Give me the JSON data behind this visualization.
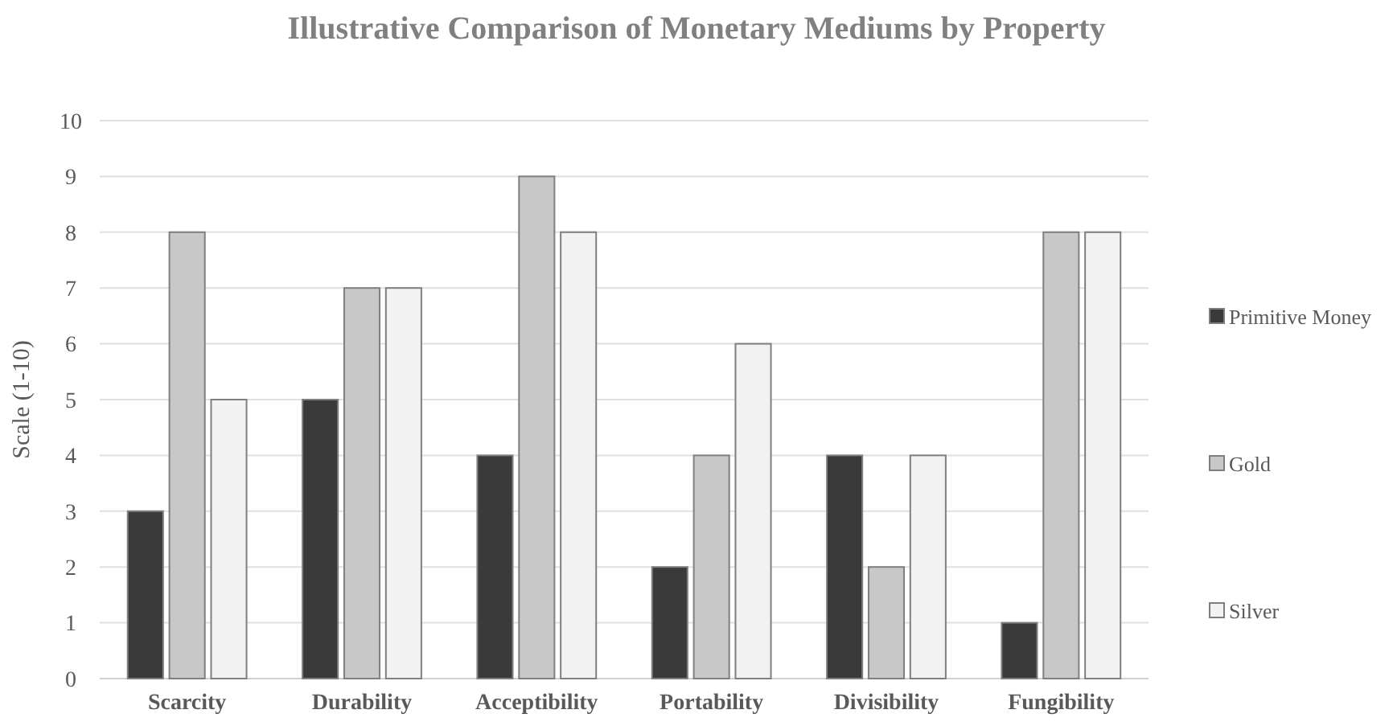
{
  "chart_data": {
    "type": "bar",
    "title": "Illustrative Comparison of Monetary Mediums by Property",
    "ylabel": "Scale (1-10)",
    "categories": [
      "Scarcity",
      "Durability",
      "Acceptibility",
      "Portability",
      "Divisibility",
      "Fungibility"
    ],
    "series": [
      {
        "name": "Primitive Money",
        "color": "#3a3a3a",
        "values": [
          3,
          5,
          4,
          2,
          4,
          1
        ]
      },
      {
        "name": "Gold",
        "color": "#c8c8c8",
        "values": [
          8,
          7,
          9,
          4,
          2,
          8
        ]
      },
      {
        "name": "Silver",
        "color": "#f2f2f2",
        "values": [
          5,
          7,
          8,
          6,
          4,
          8
        ]
      }
    ],
    "ylim": [
      0,
      10
    ],
    "yticks": [
      0,
      1,
      2,
      3,
      4,
      5,
      6,
      7,
      8,
      9,
      10
    ],
    "grid": "y",
    "legend": "right"
  }
}
